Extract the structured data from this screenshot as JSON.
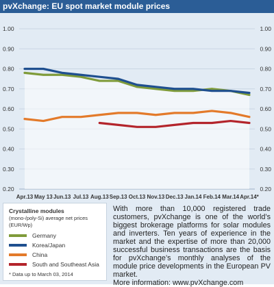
{
  "title": "pvXchange: EU spot market module prices",
  "chart_data": {
    "type": "line",
    "categories": [
      "Apr.13",
      "May 13",
      "Jun.13",
      "Jul.13",
      "Aug.13",
      "Sep.13",
      "Oct.13",
      "Nov.13",
      "Dec.13",
      "Jan.14",
      "Feb.14",
      "Mar.14",
      "Apr.14*"
    ],
    "ylim": [
      0.2,
      1.0
    ],
    "yticks": [
      "1.00",
      "0.90",
      "0.80",
      "0.70",
      "0.60",
      "0.50",
      "0.40",
      "0.30",
      "0.20"
    ],
    "ytick_values": [
      1.0,
      0.9,
      0.8,
      0.7,
      0.6,
      0.5,
      0.4,
      0.3,
      0.2
    ],
    "grid": true,
    "series": [
      {
        "name": "Germany",
        "color": "#7f9b3a",
        "area": true,
        "values": [
          0.78,
          0.77,
          0.77,
          0.76,
          0.74,
          0.74,
          0.71,
          0.7,
          0.69,
          0.69,
          0.7,
          0.69,
          0.67
        ]
      },
      {
        "name": "Korea/Japan",
        "color": "#1f4f8f",
        "values": [
          0.8,
          0.8,
          0.78,
          0.77,
          0.76,
          0.75,
          0.72,
          0.71,
          0.7,
          0.7,
          0.69,
          0.69,
          0.68
        ]
      },
      {
        "name": "China",
        "color": "#e37a2a",
        "values": [
          0.55,
          0.54,
          0.56,
          0.56,
          0.57,
          0.58,
          0.58,
          0.57,
          0.58,
          0.58,
          0.59,
          0.58,
          0.56
        ]
      },
      {
        "name": "South and Southeast Asia",
        "color": "#b3242b",
        "values": [
          null,
          null,
          null,
          null,
          0.53,
          0.52,
          0.51,
          0.51,
          0.52,
          0.53,
          0.53,
          0.54,
          0.53
        ]
      }
    ]
  },
  "legend": {
    "title": "Crystalline modules",
    "subtitle": "(mono-/poly-Si) average net prices (EUR/Wp)",
    "note": "* Data up to March 03, 2014"
  },
  "blurb": {
    "paragraph": "With more than 10,000 registered trade customers, pvXchange is one of the world’s biggest brokerage platforms for solar modules and inverters. Ten years of experience in the market and the expertise of more than 20,000 successful business transactions are the basis for pvXchange’s monthly analyses of the module price developments in the European PV market.",
    "more_info": "More information: www.pvXchange.com"
  }
}
